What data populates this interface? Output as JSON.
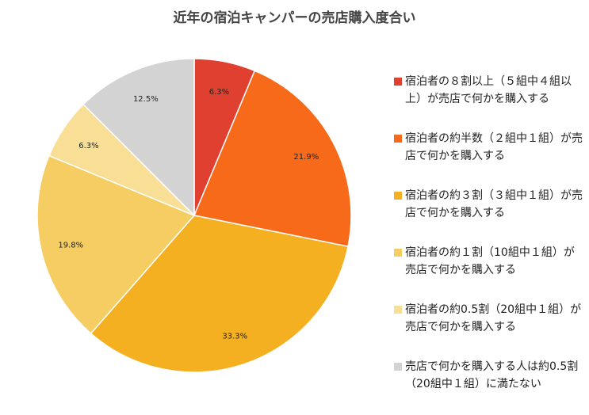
{
  "chart_data": {
    "type": "pie",
    "title": "近年の宿泊キャンパーの売店購入度合い",
    "slices": [
      {
        "label": "宿泊者の８割以上（５組中４組以上）が売店で何かを購入する",
        "value": 6.3,
        "value_label": "6.3%",
        "color": "#E0402F"
      },
      {
        "label": "宿泊者の約半数（２組中１組）が売店で何かを購入する",
        "value": 21.9,
        "value_label": "21.9%",
        "color": "#F76A1A"
      },
      {
        "label": "宿泊者の約３割（３組中１組）が売店で何かを購入する",
        "value": 33.3,
        "value_label": "33.3%",
        "color": "#F5B021"
      },
      {
        "label": "宿泊者の約１割（10組中１組）が売店で何かを購入する",
        "value": 19.8,
        "value_label": "19.8%",
        "color": "#F6CD63"
      },
      {
        "label": "宿泊者の約0.5割（20組中１組）が売店で何かを購入する",
        "value": 6.3,
        "value_label": "6.3%",
        "color": "#F9DE96"
      },
      {
        "label": "売店で何かを購入する人は約0.5割（20組中１組）に満たない",
        "value": 12.5,
        "value_label": "12.5%",
        "color": "#D3D3D3"
      }
    ],
    "legend_position": "right"
  }
}
